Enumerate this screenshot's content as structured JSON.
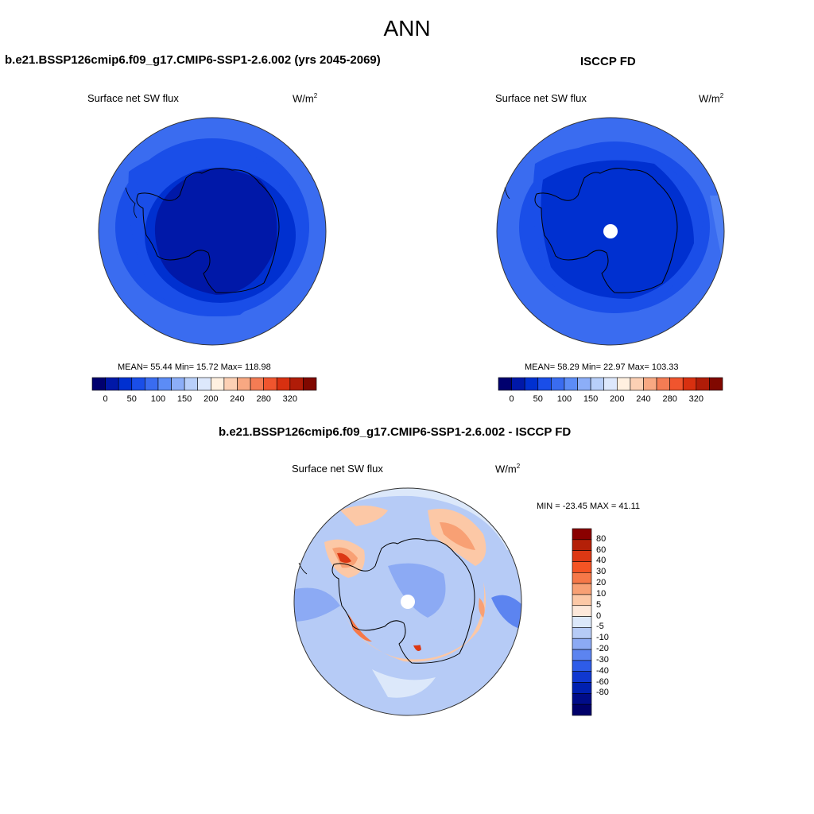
{
  "figure": {
    "title": "ANN"
  },
  "panels": [
    {
      "title": "b.e21.BSSP126cmip6.f09_g17.CMIP6-SSP1-2.6.002 (yrs 2045-2069)",
      "variable": "Surface net SW flux",
      "units_base": "W/m",
      "units_exp": "2",
      "stats_text": "MEAN=  55.44  Min=  15.72  Max= 118.98",
      "stats": {
        "mean": 55.44,
        "min": 15.72,
        "max": 118.98
      }
    },
    {
      "title": "ISCCP FD",
      "variable": "Surface net SW flux",
      "units_base": "W/m",
      "units_exp": "2",
      "stats_text": "MEAN=  58.29  Min=  22.97  Max= 103.33",
      "stats": {
        "mean": 58.29,
        "min": 22.97,
        "max": 103.33
      }
    },
    {
      "title": "b.e21.BSSP126cmip6.f09_g17.CMIP6-SSP1-2.6.002 - ISCCP FD",
      "variable": "Surface net SW flux",
      "units_base": "W/m",
      "units_exp": "2",
      "stats_text": "MIN = -23.45 MAX =  41.11",
      "stats": {
        "min": -23.45,
        "max": 41.11
      }
    }
  ],
  "colorbar_abs": {
    "colors": [
      "#00006e",
      "#0018a8",
      "#0030d0",
      "#1a4ee8",
      "#3a6cf0",
      "#5c8cf6",
      "#8caef8",
      "#b8cffa",
      "#dde8fc",
      "#fff0e0",
      "#fcd0b4",
      "#f8a882",
      "#f47c54",
      "#f0552e",
      "#d83010",
      "#b01c08",
      "#800800"
    ],
    "tick_labels": [
      "0",
      "50",
      "100",
      "150",
      "200",
      "240",
      "280",
      "320"
    ]
  },
  "colorbar_diff": {
    "colors": [
      "#8a0000",
      "#b42008",
      "#dc3814",
      "#f45424",
      "#f67848",
      "#f8a074",
      "#fcc8a6",
      "#fde8da",
      "#dce8fa",
      "#b6cbf6",
      "#8caaf4",
      "#5c84f0",
      "#2e5ce8",
      "#1038d0",
      "#0020b0",
      "#000c88",
      "#00006a"
    ],
    "tick_labels": [
      "80",
      "60",
      "40",
      "30",
      "20",
      "10",
      "5",
      "0",
      "-5",
      "-10",
      "-20",
      "-30",
      "-40",
      "-60",
      "-80"
    ]
  }
}
